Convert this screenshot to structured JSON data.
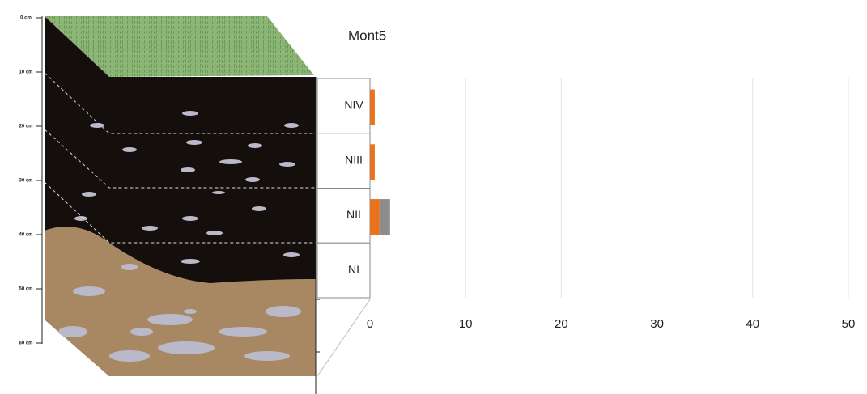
{
  "profile": {
    "depth_labels": [
      "0 cm",
      "10 cm",
      "20 cm",
      "30 cm",
      "40 cm",
      "50 cm",
      "60 cm"
    ]
  },
  "chart_data": {
    "type": "hbar",
    "title": "Mont5",
    "categories": [
      "NIV",
      "NIII",
      "NII",
      "NI"
    ],
    "series": [
      {
        "color": "#e8731c",
        "values": [
          0.5,
          0.5,
          1,
          0
        ]
      },
      {
        "color": "#8c8c8c",
        "values": [
          0,
          0,
          1.1,
          0
        ]
      }
    ],
    "xlim": [
      0,
      50
    ],
    "xticks": [
      0,
      10,
      20,
      30,
      40,
      50
    ],
    "grid": true
  }
}
